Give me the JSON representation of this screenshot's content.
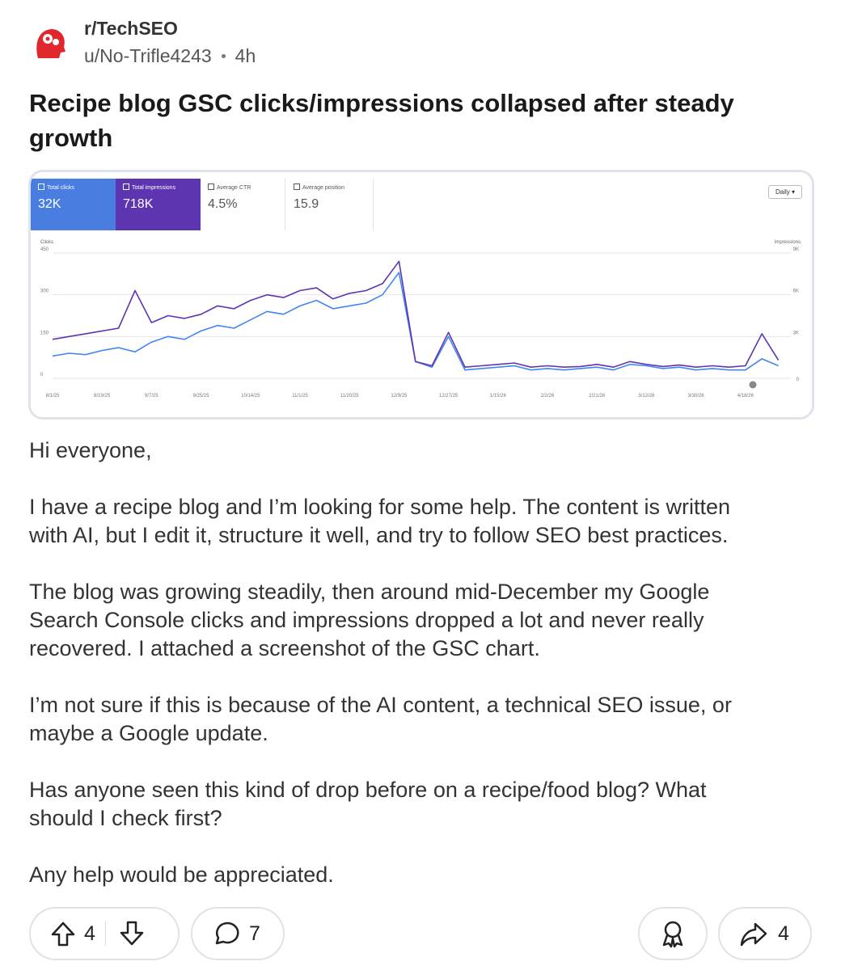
{
  "post": {
    "subreddit": "r/TechSEO",
    "author": "u/No-Trifle4243",
    "time": "4h",
    "title_lines": [
      "Recipe blog GSC clicks/impressions collapsed after steady",
      "growth"
    ],
    "body": [
      [
        "Hi everyone,"
      ],
      [
        "I have a recipe blog and I’m looking for some help. The content is written",
        "with AI, but I edit it, structure it well, and try to follow SEO best practices."
      ],
      [
        "The blog was growing steadily, then around mid-December my Google",
        "Search Console clicks and impressions dropped a lot and never really",
        "recovered. I attached a screenshot of the GSC chart."
      ],
      [
        "I’m not sure if this is because of the AI content, a technical SEO issue, or",
        "maybe a Google update."
      ],
      [
        "Has anyone seen this kind of drop before on a recipe/food blog? What",
        "should I check first?"
      ],
      [
        "Any help would be appreciated."
      ]
    ],
    "votes": "4",
    "comments": "7",
    "shares": "4"
  },
  "chart_data": {
    "type": "line",
    "interval": "Daily",
    "y_label": "Clicks",
    "y2_label": "Impressions",
    "metrics": [
      {
        "label": "Average CTR",
        "value": "4.5%"
      },
      {
        "label": "Average position",
        "value": "15.9"
      }
    ],
    "categories": [
      "8/1/25",
      null,
      null,
      "8/19/25",
      null,
      null,
      "9/7/25",
      null,
      null,
      "9/25/25",
      null,
      null,
      "10/14/25",
      null,
      null,
      "11/1/25",
      null,
      null,
      "11/20/25",
      null,
      null,
      "12/9/25",
      null,
      null,
      "12/27/25",
      null,
      null,
      "1/15/26",
      null,
      null,
      "2/2/26",
      null,
      null,
      "2/21/26",
      null,
      null,
      "3/12/26",
      null,
      null,
      "3/30/26",
      null,
      null,
      "4/18/26",
      null,
      null
    ],
    "series": [
      {
        "name": "Total clicks",
        "total": "32K",
        "color": "#4285f4",
        "values": [
          80,
          90,
          85,
          100,
          110,
          95,
          130,
          150,
          140,
          170,
          190,
          180,
          210,
          240,
          230,
          260,
          280,
          250,
          260,
          270,
          300,
          380,
          60,
          40,
          150,
          30,
          35,
          40,
          45,
          30,
          35,
          30,
          35,
          40,
          30,
          50,
          45,
          35,
          40,
          30,
          35,
          30,
          30,
          70,
          45
        ]
      },
      {
        "name": "Total impressions",
        "total": "718K",
        "color": "#5e35b1",
        "axis": "y2",
        "values": [
          2800,
          3000,
          3200,
          3400,
          3600,
          6300,
          4000,
          4500,
          4300,
          4600,
          5200,
          5000,
          5600,
          6000,
          5800,
          6300,
          6500,
          5700,
          6100,
          6300,
          6800,
          8400,
          1200,
          900,
          3300,
          800,
          900,
          1000,
          1100,
          800,
          900,
          800,
          850,
          1000,
          800,
          1200,
          1000,
          850,
          950,
          800,
          900,
          800,
          900,
          3200,
          1300
        ]
      }
    ],
    "ylim": [
      0,
      450
    ],
    "yticks": [
      0,
      150,
      300,
      450
    ],
    "y2lim": [
      0,
      9000
    ],
    "y2ticks": [
      0,
      {
        "value": 3000,
        "label": "3K"
      },
      {
        "value": 6000,
        "label": "6K"
      },
      {
        "value": 9000,
        "label": "9K"
      }
    ],
    "grid": true
  }
}
